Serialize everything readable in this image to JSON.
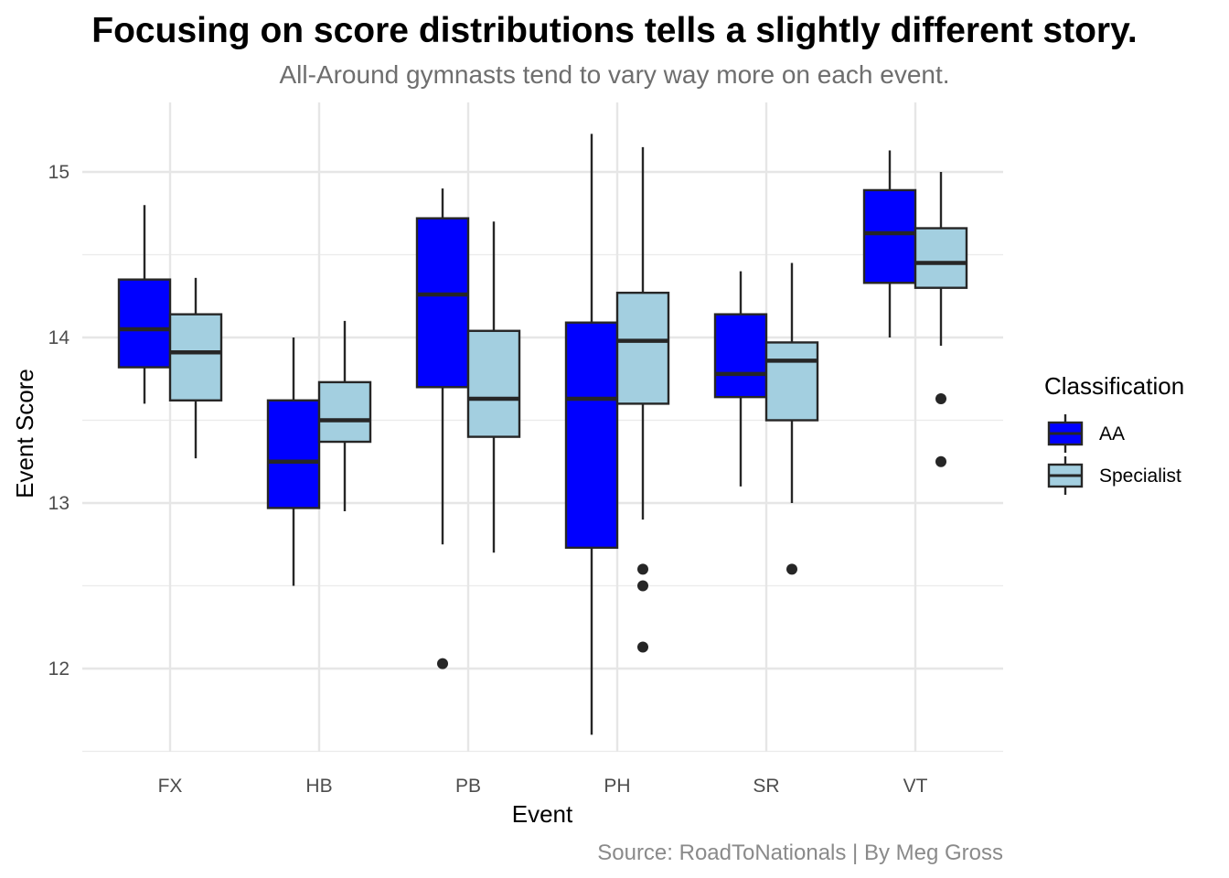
{
  "chart_data": {
    "type": "boxplot",
    "title": "Focusing on score distributions tells a slightly different story.",
    "subtitle": "All-Around gymnasts tend to vary way more on each event.",
    "caption": "Source: RoadToNationals | By Meg Gross",
    "xlabel": "Event",
    "ylabel": "Event Score",
    "ylim": [
      11.5,
      15.35
    ],
    "yticks": [
      12,
      13,
      14,
      15
    ],
    "grid": true,
    "categories": [
      "FX",
      "HB",
      "PB",
      "PH",
      "SR",
      "VT"
    ],
    "legend": {
      "title": "Classification",
      "position": "right"
    },
    "series": [
      {
        "name": "AA",
        "color": "#0000ff",
        "boxes": [
          {
            "min": 13.6,
            "q1": 13.82,
            "median": 14.05,
            "q3": 14.35,
            "max": 14.8,
            "outliers": []
          },
          {
            "min": 12.5,
            "q1": 12.97,
            "median": 13.25,
            "q3": 13.62,
            "max": 14.0,
            "outliers": []
          },
          {
            "min": 12.75,
            "q1": 13.7,
            "median": 14.26,
            "q3": 14.72,
            "max": 14.9,
            "outliers": [
              12.03
            ]
          },
          {
            "min": 11.6,
            "q1": 12.73,
            "median": 13.63,
            "q3": 14.09,
            "max": 15.23,
            "outliers": []
          },
          {
            "min": 13.1,
            "q1": 13.64,
            "median": 13.78,
            "q3": 14.14,
            "max": 14.4,
            "outliers": []
          },
          {
            "min": 14.0,
            "q1": 14.33,
            "median": 14.63,
            "q3": 14.89,
            "max": 15.13,
            "outliers": []
          }
        ]
      },
      {
        "name": "Specialist",
        "color": "#a3cfe0",
        "boxes": [
          {
            "min": 13.27,
            "q1": 13.62,
            "median": 13.91,
            "q3": 14.14,
            "max": 14.36,
            "outliers": []
          },
          {
            "min": 12.95,
            "q1": 13.37,
            "median": 13.5,
            "q3": 13.73,
            "max": 14.1,
            "outliers": []
          },
          {
            "min": 12.7,
            "q1": 13.4,
            "median": 13.63,
            "q3": 14.04,
            "max": 14.7,
            "outliers": []
          },
          {
            "min": 12.9,
            "q1": 13.6,
            "median": 13.98,
            "q3": 14.27,
            "max": 15.15,
            "outliers": [
              12.6,
              12.5,
              12.13
            ]
          },
          {
            "min": 13.0,
            "q1": 13.5,
            "median": 13.86,
            "q3": 13.97,
            "max": 14.45,
            "outliers": [
              12.6
            ]
          },
          {
            "min": 13.95,
            "q1": 14.3,
            "median": 14.45,
            "q3": 14.66,
            "max": 15.0,
            "outliers": [
              13.63,
              13.25
            ]
          }
        ]
      }
    ]
  }
}
